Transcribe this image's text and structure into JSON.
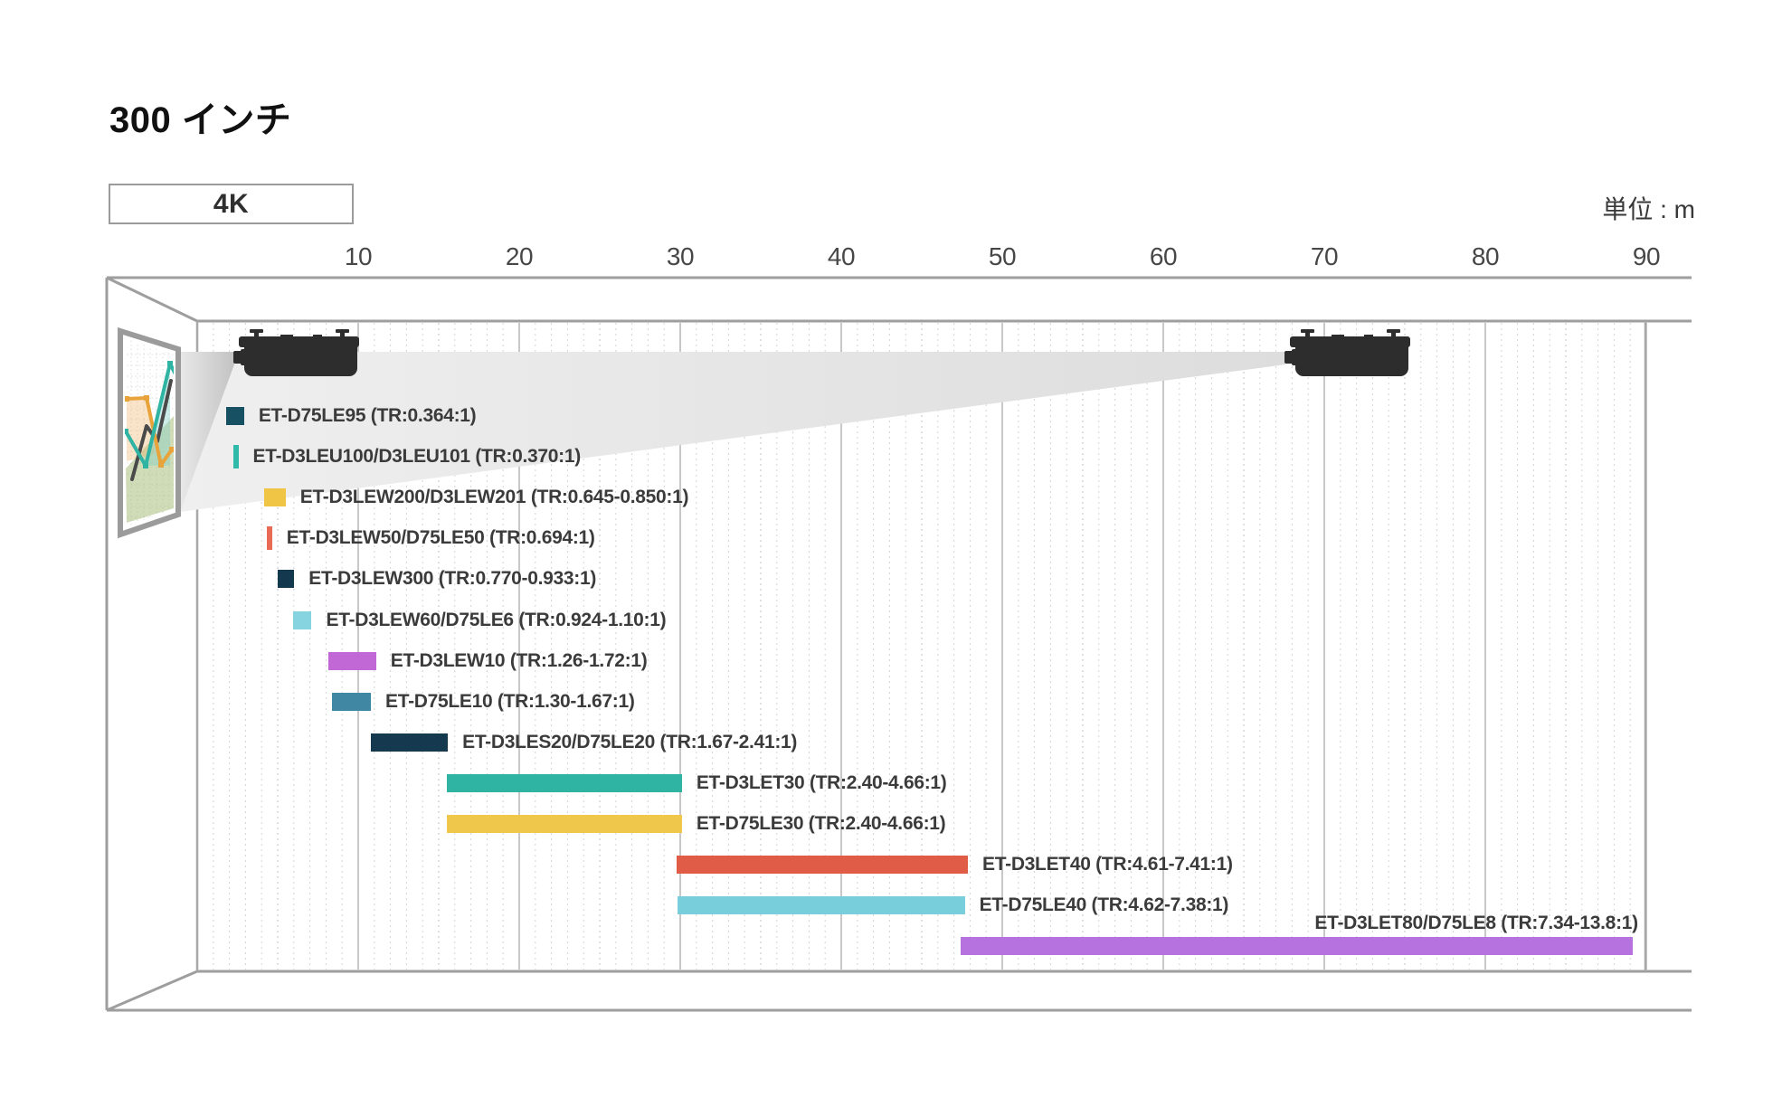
{
  "title": "300 インチ",
  "resolution_badge": "4K",
  "unit_label": "単位 : m",
  "axis": {
    "ticks": [
      10,
      20,
      30,
      40,
      50,
      60,
      70,
      80,
      90
    ]
  },
  "lenses": [
    {
      "label": "ET-D75LE95",
      "tr_text": "(TR:0.364:1)",
      "color": "#175062",
      "tr_min": 0.364,
      "tr_max": 0.364,
      "style": "square"
    },
    {
      "label": "ET-D3LEU100/D3LEU101",
      "tr_text": "(TR:0.370:1)",
      "color": "#2FB9A8",
      "tr_min": 0.37,
      "tr_max": 0.37,
      "style": "thin"
    },
    {
      "label": "ET-D3LEW200/D3LEW201",
      "tr_text": "(TR:0.645-0.850:1)",
      "color": "#F0C545",
      "tr_min": 0.645,
      "tr_max": 0.85,
      "style": "range"
    },
    {
      "label": "ET-D3LEW50/D75LE50",
      "tr_text": "(TR:0.694:1)",
      "color": "#EA6B55",
      "tr_min": 0.694,
      "tr_max": 0.694,
      "style": "thin"
    },
    {
      "label": "ET-D3LEW300",
      "tr_text": "(TR:0.770-0.933:1)",
      "color": "#14384E",
      "tr_min": 0.77,
      "tr_max": 0.933,
      "style": "range"
    },
    {
      "label": "ET-D3LEW60/D75LE6",
      "tr_text": "(TR:0.924-1.10:1)",
      "color": "#85D4E0",
      "tr_min": 0.924,
      "tr_max": 1.1,
      "style": "range"
    },
    {
      "label": "ET-D3LEW10",
      "tr_text": "(TR:1.26-1.72:1)",
      "color": "#C168D6",
      "tr_min": 1.26,
      "tr_max": 1.72,
      "style": "range"
    },
    {
      "label": "ET-D75LE10",
      "tr_text": "(TR:1.30-1.67:1)",
      "color": "#3F87A3",
      "tr_min": 1.3,
      "tr_max": 1.67,
      "style": "range"
    },
    {
      "label": "ET-D3LES20/D75LE20",
      "tr_text": "(TR:1.67-2.41:1)",
      "color": "#15394F",
      "tr_min": 1.67,
      "tr_max": 2.41,
      "style": "range"
    },
    {
      "label": "ET-D3LET30",
      "tr_text": "(TR:2.40-4.66:1)",
      "color": "#2FB3A2",
      "tr_min": 2.4,
      "tr_max": 4.66,
      "style": "range"
    },
    {
      "label": "ET-D75LE30",
      "tr_text": "(TR:2.40-4.66:1)",
      "color": "#EFC74B",
      "tr_min": 2.4,
      "tr_max": 4.66,
      "style": "range"
    },
    {
      "label": "ET-D3LET40",
      "tr_text": "(TR:4.61-7.41:1)",
      "color": "#E05C47",
      "tr_min": 4.61,
      "tr_max": 7.41,
      "style": "range"
    },
    {
      "label": "ET-D75LE40",
      "tr_text": "(TR:4.62-7.38:1)",
      "color": "#79CEDB",
      "tr_min": 4.62,
      "tr_max": 7.38,
      "style": "range"
    },
    {
      "label": "ET-D3LET80/D75LE8",
      "tr_text": "(TR:7.34-13.8:1)",
      "color": "#B672DE",
      "tr_min": 7.34,
      "tr_max": 13.8,
      "style": "range",
      "label_position": "above"
    }
  ],
  "chart_data": {
    "type": "bar",
    "orientation": "horizontal-range",
    "title": "300 インチ",
    "subtitle_badge": "4K",
    "xlabel": "単位 : m",
    "xlim": [
      0,
      92
    ],
    "x_ticks": [
      10,
      20,
      30,
      40,
      50,
      60,
      70,
      80,
      90
    ],
    "grid": "major solid every 10 m, dotted minor every 1 m",
    "categories": [
      "ET-D75LE95",
      "ET-D3LEU100/D3LEU101",
      "ET-D3LEW200/D3LEW201",
      "ET-D3LEW50/D75LE50",
      "ET-D3LEW300",
      "ET-D3LEW60/D75LE6",
      "ET-D3LEW10",
      "ET-D75LE10",
      "ET-D3LES20/D75LE20",
      "ET-D3LET30",
      "ET-D75LE30",
      "ET-D3LET40",
      "ET-D75LE40",
      "ET-D3LET80/D75LE8"
    ],
    "series": [
      {
        "name": "ET-D75LE95",
        "throw_ratio": [
          0.364,
          0.364
        ],
        "distance_m": [
          2.4,
          2.4
        ]
      },
      {
        "name": "ET-D3LEU100/D3LEU101",
        "throw_ratio": [
          0.37,
          0.37
        ],
        "distance_m": [
          2.4,
          2.4
        ]
      },
      {
        "name": "ET-D3LEW200/D3LEW201",
        "throw_ratio": [
          0.645,
          0.85
        ],
        "distance_m": [
          4.2,
          5.5
        ]
      },
      {
        "name": "ET-D3LEW50/D75LE50",
        "throw_ratio": [
          0.694,
          0.694
        ],
        "distance_m": [
          4.5,
          4.5
        ]
      },
      {
        "name": "ET-D3LEW300",
        "throw_ratio": [
          0.77,
          0.933
        ],
        "distance_m": [
          5.0,
          6.0
        ]
      },
      {
        "name": "ET-D3LEW60/D75LE6",
        "throw_ratio": [
          0.924,
          1.1
        ],
        "distance_m": [
          6.0,
          7.1
        ]
      },
      {
        "name": "ET-D3LEW10",
        "throw_ratio": [
          1.26,
          1.72
        ],
        "distance_m": [
          8.1,
          11.1
        ]
      },
      {
        "name": "ET-D75LE10",
        "throw_ratio": [
          1.3,
          1.67
        ],
        "distance_m": [
          8.4,
          10.8
        ]
      },
      {
        "name": "ET-D3LES20/D75LE20",
        "throw_ratio": [
          1.67,
          2.41
        ],
        "distance_m": [
          10.8,
          15.6
        ]
      },
      {
        "name": "ET-D3LET30",
        "throw_ratio": [
          2.4,
          4.66
        ],
        "distance_m": [
          15.5,
          30.1
        ]
      },
      {
        "name": "ET-D75LE30",
        "throw_ratio": [
          2.4,
          4.66
        ],
        "distance_m": [
          15.5,
          30.1
        ]
      },
      {
        "name": "ET-D3LET40",
        "throw_ratio": [
          4.61,
          7.41
        ],
        "distance_m": [
          29.8,
          47.9
        ]
      },
      {
        "name": "ET-D75LE40",
        "throw_ratio": [
          4.62,
          7.38
        ],
        "distance_m": [
          29.8,
          47.7
        ]
      },
      {
        "name": "ET-D3LET80/D75LE8",
        "throw_ratio": [
          7.34,
          13.8
        ],
        "distance_m": [
          47.4,
          89.1
        ]
      }
    ]
  }
}
